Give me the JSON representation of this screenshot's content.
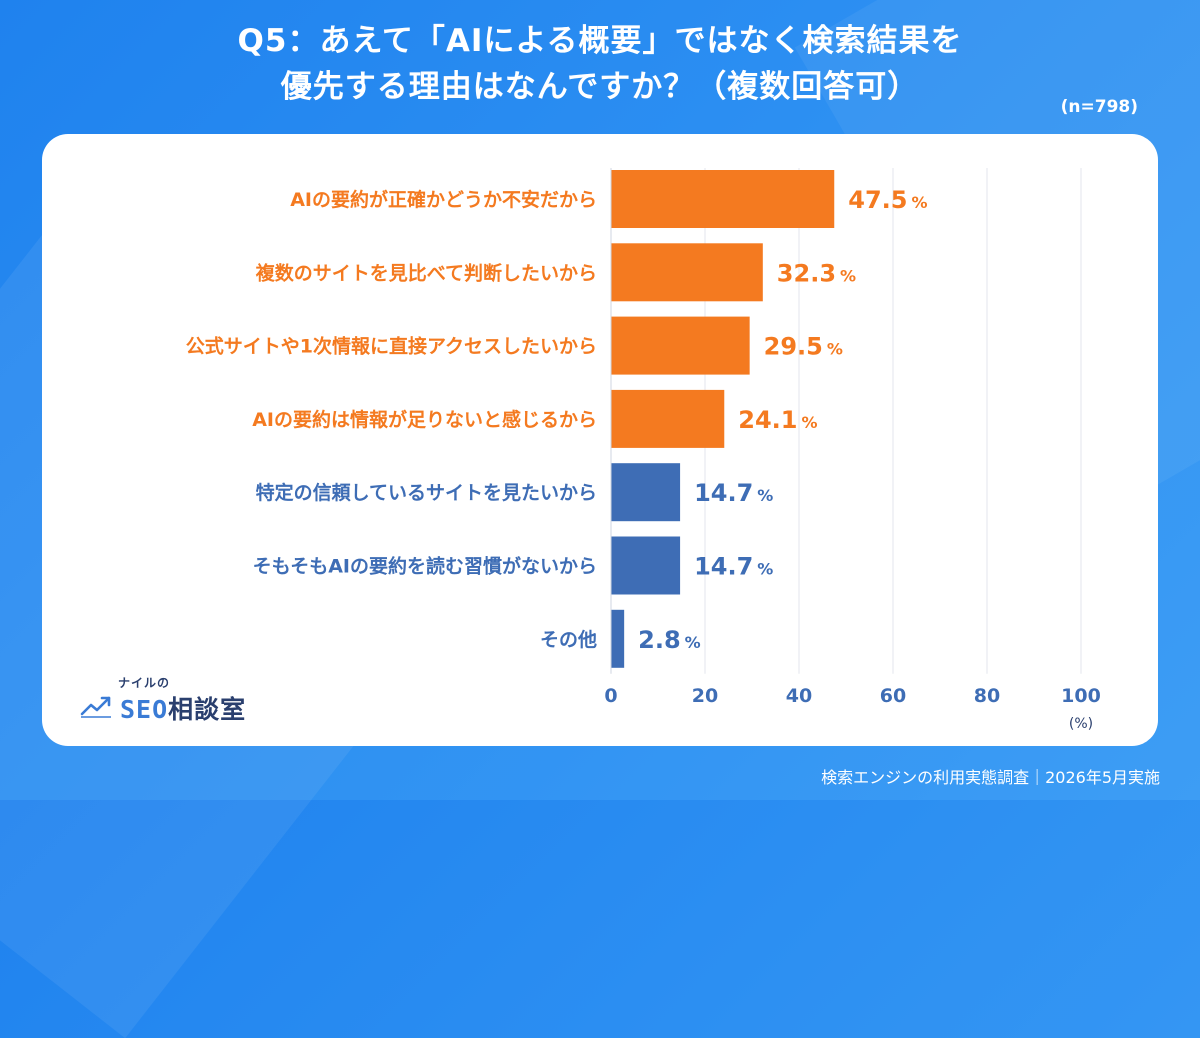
{
  "title": {
    "line1": "Q5：あえて「AIによる概要」ではなく検索結果を",
    "line2": "優先する理由はなんですか？（複数回答可）"
  },
  "sample_size": "(n=798)",
  "logo": {
    "small": "ナイルの",
    "seo": "SEO",
    "main": "相談室",
    "icon": "trend-line-icon"
  },
  "footer": "検索エンジンの利用実態調査｜2026年5月実施",
  "colors": {
    "highlight": "#f47a20",
    "normal": "#3e6db5",
    "background": "#2b8cf0",
    "grid": "#e3e6ee"
  },
  "chart_data": {
    "type": "bar",
    "orientation": "horizontal",
    "categories": [
      "AIの要約が正確かどうか不安だから",
      "複数のサイトを見比べて判断したいから",
      "公式サイトや1次情報に直接アクセスしたいから",
      "AIの要約は情報が足りないと感じるから",
      "特定の信頼しているサイトを見たいから",
      "そもそもAIの要約を読む習慣がないから",
      "その他"
    ],
    "values": [
      47.5,
      32.3,
      29.5,
      24.1,
      14.7,
      14.7,
      2.8
    ],
    "highlighted": [
      true,
      true,
      true,
      true,
      false,
      false,
      false
    ],
    "value_unit": "%",
    "xlabel": "(%)",
    "xlim": [
      0,
      100
    ],
    "xticks": [
      0,
      20,
      40,
      60,
      80,
      100
    ],
    "grid": true
  }
}
